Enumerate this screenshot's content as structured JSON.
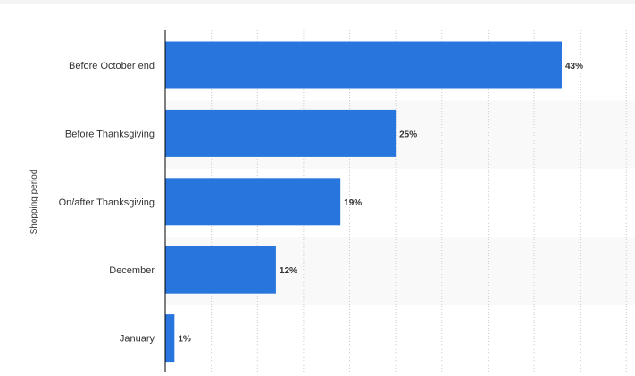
{
  "chart_data": {
    "type": "bar",
    "orientation": "horizontal",
    "categories": [
      "Before October end",
      "Before Thanksgiving",
      "On/after Thanksgiving",
      "December",
      "January"
    ],
    "values": [
      43,
      25,
      19,
      12,
      1
    ],
    "value_labels": [
      "43%",
      "25%",
      "19%",
      "12%",
      "1%"
    ],
    "title": "",
    "xlabel": "",
    "ylabel": "Shopping period",
    "xlim": [
      0,
      50
    ],
    "grid": true,
    "bar_color": "#2876dd",
    "band_color": "#f9f9f9"
  }
}
